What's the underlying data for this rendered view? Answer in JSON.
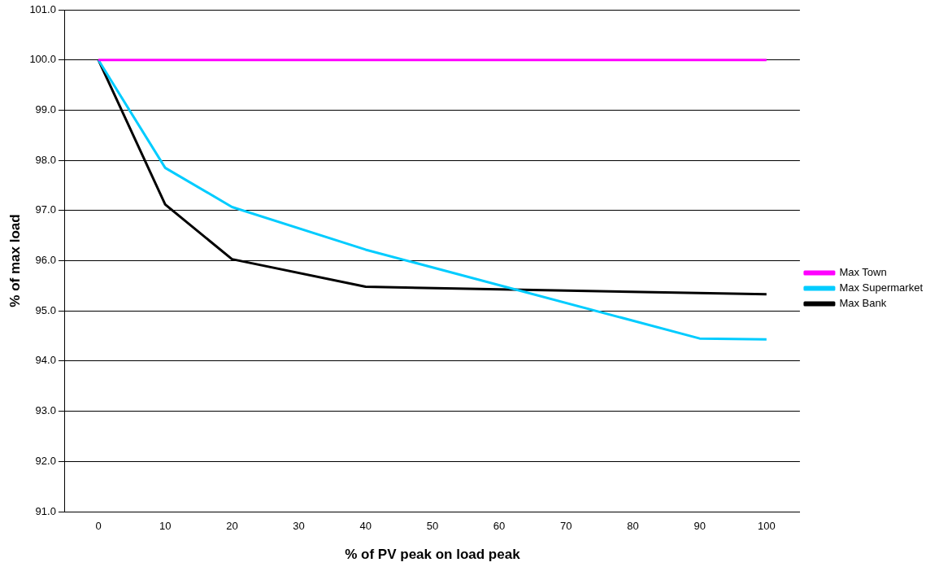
{
  "chart_data": {
    "type": "line",
    "xlabel": "% of PV peak on load peak",
    "ylabel": "% of max load",
    "categories": [
      "0",
      "10",
      "20",
      "30",
      "40",
      "50",
      "60",
      "70",
      "80",
      "90",
      "100"
    ],
    "series": [
      {
        "name": "Max Town",
        "color": "#ff00ff",
        "values": [
          100,
          100,
          100,
          100,
          100,
          100,
          100,
          100,
          100,
          100,
          100
        ]
      },
      {
        "name": "Max Supermarket",
        "color": "#00ccff",
        "values": [
          100,
          97.85,
          97.07,
          null,
          96.22,
          null,
          null,
          null,
          null,
          94.45,
          94.43
        ]
      },
      {
        "name": "Max Bank",
        "color": "#000000",
        "values": [
          100,
          97.12,
          96.03,
          null,
          95.48,
          null,
          null,
          null,
          null,
          null,
          95.33
        ]
      }
    ],
    "ylim": [
      91,
      101
    ],
    "yticks": [
      {
        "value": 91,
        "label": "91.0"
      },
      {
        "value": 92,
        "label": "92.0"
      },
      {
        "value": 93,
        "label": "93.0"
      },
      {
        "value": 94,
        "label": "94.0"
      },
      {
        "value": 95,
        "label": "95.0"
      },
      {
        "value": 96,
        "label": "96.0"
      },
      {
        "value": 97,
        "label": "97.0"
      },
      {
        "value": 98,
        "label": "98.0"
      },
      {
        "value": 99,
        "label": "99.0"
      },
      {
        "value": 100,
        "label": "100.0"
      },
      {
        "value": 101,
        "label": "101.0"
      }
    ],
    "grid": "y",
    "legend": "right",
    "marker": "none",
    "line_style": "solid"
  }
}
